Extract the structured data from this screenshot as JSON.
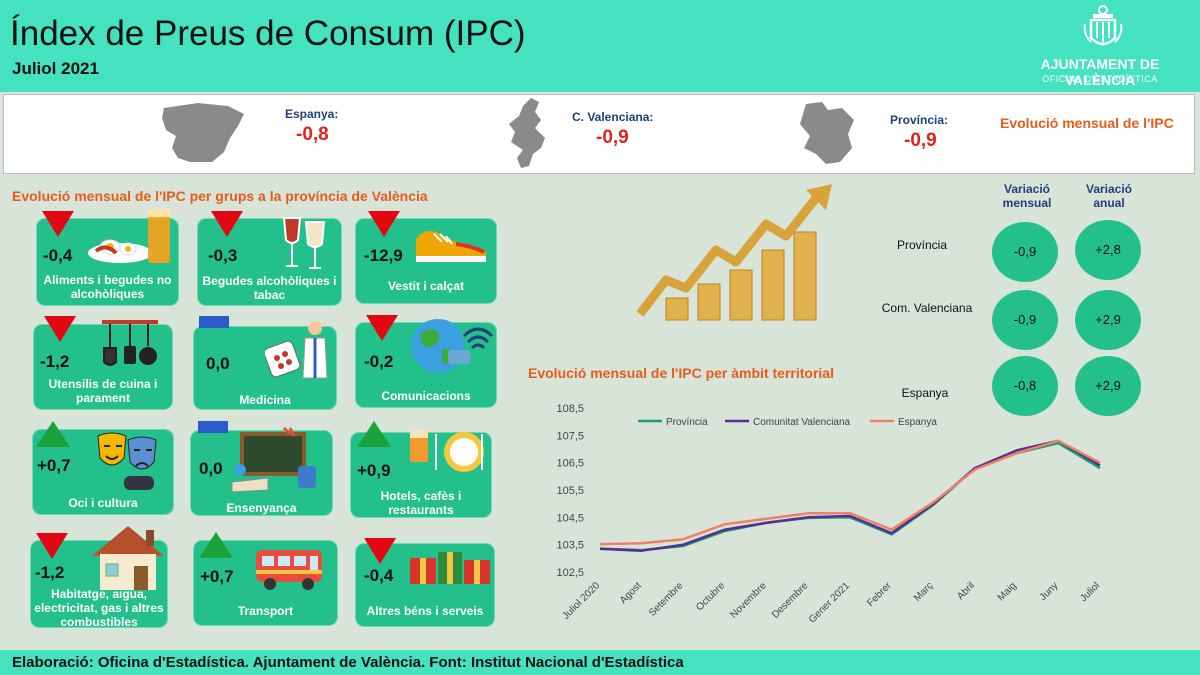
{
  "header": {
    "title": "Índex de Preus de Consum (IPC)",
    "subtitle": "Juliol 2021",
    "logo_name": "AJUNTAMENT DE VALÈNCIA",
    "logo_sub": "OFICINA D'ESTADÍSTICA"
  },
  "summary": {
    "espanya": {
      "label": "Espanya:",
      "value": "-0,8"
    },
    "cvalenciana": {
      "label": "C. Valenciana:",
      "value": "-0,9"
    },
    "provincia": {
      "label": "Província:",
      "value": "-0,9"
    },
    "title": "Evolució mensual de l'IPC"
  },
  "groups": {
    "title": "Evolució mensual de l'IPC per grups a la província de València",
    "items": [
      {
        "value": "-0,4",
        "label": "Aliments i begudes no alcohòliques",
        "trend": "down",
        "icon": "food-icon"
      },
      {
        "value": "-0,3",
        "label": "Begudes alcohòliques i tabac",
        "trend": "down",
        "icon": "wine-icon"
      },
      {
        "value": "-12,9",
        "label": "Vestit i calçat",
        "trend": "down",
        "icon": "shoe-icon"
      },
      {
        "value": "-1,2",
        "label": "Utensilis de cuina i parament",
        "trend": "down",
        "icon": "kitchen-utensils-icon"
      },
      {
        "value": "0,0",
        "label": "Medicina",
        "trend": "flat",
        "icon": "doctor-icon"
      },
      {
        "value": "-0,2",
        "label": "Comunicacions",
        "trend": "down",
        "icon": "globe-icon"
      },
      {
        "value": "+0,7",
        "label": "Oci i cultura",
        "trend": "up",
        "icon": "theatre-masks-icon"
      },
      {
        "value": "0,0",
        "label": "Ensenyança",
        "trend": "flat",
        "icon": "blackboard-icon"
      },
      {
        "value": "+0,9",
        "label": "Hotels, cafès i restaurants",
        "trend": "up",
        "icon": "plate-icon"
      },
      {
        "value": "-1,2",
        "label": "Habitatge, aigua, electricitat, gas i altres combustibles",
        "trend": "down",
        "icon": "house-icon"
      },
      {
        "value": "+0,7",
        "label": "Transport",
        "trend": "up",
        "icon": "bus-icon"
      },
      {
        "value": "-0,4",
        "label": "Altres béns i serveis",
        "trend": "down",
        "icon": "gift-icon"
      }
    ]
  },
  "variation": {
    "col_mensual": "Variació mensual",
    "col_anual": "Variació anual",
    "rows": [
      {
        "label": "Província",
        "mensual": "-0,9",
        "anual": "+2,8"
      },
      {
        "label": "Com. Valenciana",
        "mensual": "-0,9",
        "anual": "+2,9"
      },
      {
        "label": "Espanya",
        "mensual": "-0,8",
        "anual": "+2,9"
      }
    ]
  },
  "chart_section_title": "Evolució mensual de l'IPC per àmbit territorial",
  "footer": "Elaboració: Oficina d'Estadística. Ajuntament de València. Font: Institut Nacional d'Estadística",
  "colors": {
    "header": "#44e2bf",
    "card": "#23c08c",
    "down": "#e30613",
    "up": "#1aa33c",
    "flat": "#2a5bc8",
    "accent_title": "#e65c1b"
  },
  "chart_data": {
    "type": "line",
    "x": [
      "Juliol 2020",
      "Agost",
      "Setembre",
      "Octubre",
      "Novembre",
      "Desembre",
      "Gener 2021",
      "Febrer",
      "Març",
      "Abril",
      "Maig",
      "Juny",
      "Juliol"
    ],
    "series": [
      {
        "name": "Província",
        "color": "#17a06f",
        "values": [
          103.35,
          103.3,
          103.45,
          104.0,
          104.3,
          104.48,
          104.5,
          103.88,
          104.95,
          106.3,
          106.85,
          107.22,
          106.3
        ]
      },
      {
        "name": "Comunitat Valenciana",
        "color": "#5a2d91",
        "values": [
          103.35,
          103.28,
          103.5,
          104.05,
          104.3,
          104.5,
          104.55,
          103.92,
          105.0,
          106.3,
          106.95,
          107.3,
          106.4
        ]
      },
      {
        "name": "Espanya",
        "color": "#f0806a",
        "values": [
          103.52,
          103.55,
          103.7,
          104.25,
          104.45,
          104.65,
          104.65,
          104.05,
          105.05,
          106.25,
          106.85,
          107.3,
          106.5
        ]
      }
    ],
    "yticks": [
      "108,5",
      "107,5",
      "106,5",
      "105,5",
      "104,5",
      "103,5",
      "102,5"
    ],
    "ylim": [
      102.5,
      108.5
    ],
    "grid": false,
    "legend": "top"
  }
}
